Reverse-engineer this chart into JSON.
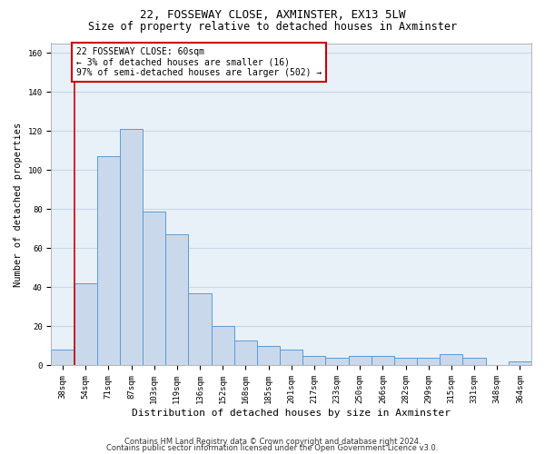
{
  "title1": "22, FOSSEWAY CLOSE, AXMINSTER, EX13 5LW",
  "title2": "Size of property relative to detached houses in Axminster",
  "xlabel": "Distribution of detached houses by size in Axminster",
  "ylabel": "Number of detached properties",
  "categories": [
    "38sqm",
    "54sqm",
    "71sqm",
    "87sqm",
    "103sqm",
    "119sqm",
    "136sqm",
    "152sqm",
    "168sqm",
    "185sqm",
    "201sqm",
    "217sqm",
    "233sqm",
    "250sqm",
    "266sqm",
    "282sqm",
    "299sqm",
    "315sqm",
    "331sqm",
    "348sqm",
    "364sqm"
  ],
  "values": [
    8,
    42,
    107,
    121,
    79,
    67,
    37,
    20,
    13,
    10,
    8,
    5,
    4,
    5,
    5,
    4,
    4,
    6,
    4,
    0,
    2
  ],
  "bar_color": "#c9d9eb",
  "bar_edge_color": "#5b9bd5",
  "annotation_box_text": "22 FOSSEWAY CLOSE: 60sqm\n← 3% of detached houses are smaller (16)\n97% of semi-detached houses are larger (502) →",
  "annotation_box_color": "#ffffff",
  "annotation_box_edge_color": "#cc0000",
  "vline_color": "#cc0000",
  "ylim": [
    0,
    165
  ],
  "yticks": [
    0,
    20,
    40,
    60,
    80,
    100,
    120,
    140,
    160
  ],
  "grid_color": "#c5d8ea",
  "background_color": "#e8f0f8",
  "footer1": "Contains HM Land Registry data © Crown copyright and database right 2024.",
  "footer2": "Contains public sector information licensed under the Open Government Licence v3.0.",
  "title1_fontsize": 9,
  "title2_fontsize": 8.5,
  "xlabel_fontsize": 8,
  "ylabel_fontsize": 7.5,
  "tick_fontsize": 6.5,
  "annot_fontsize": 7,
  "footer_fontsize": 6
}
